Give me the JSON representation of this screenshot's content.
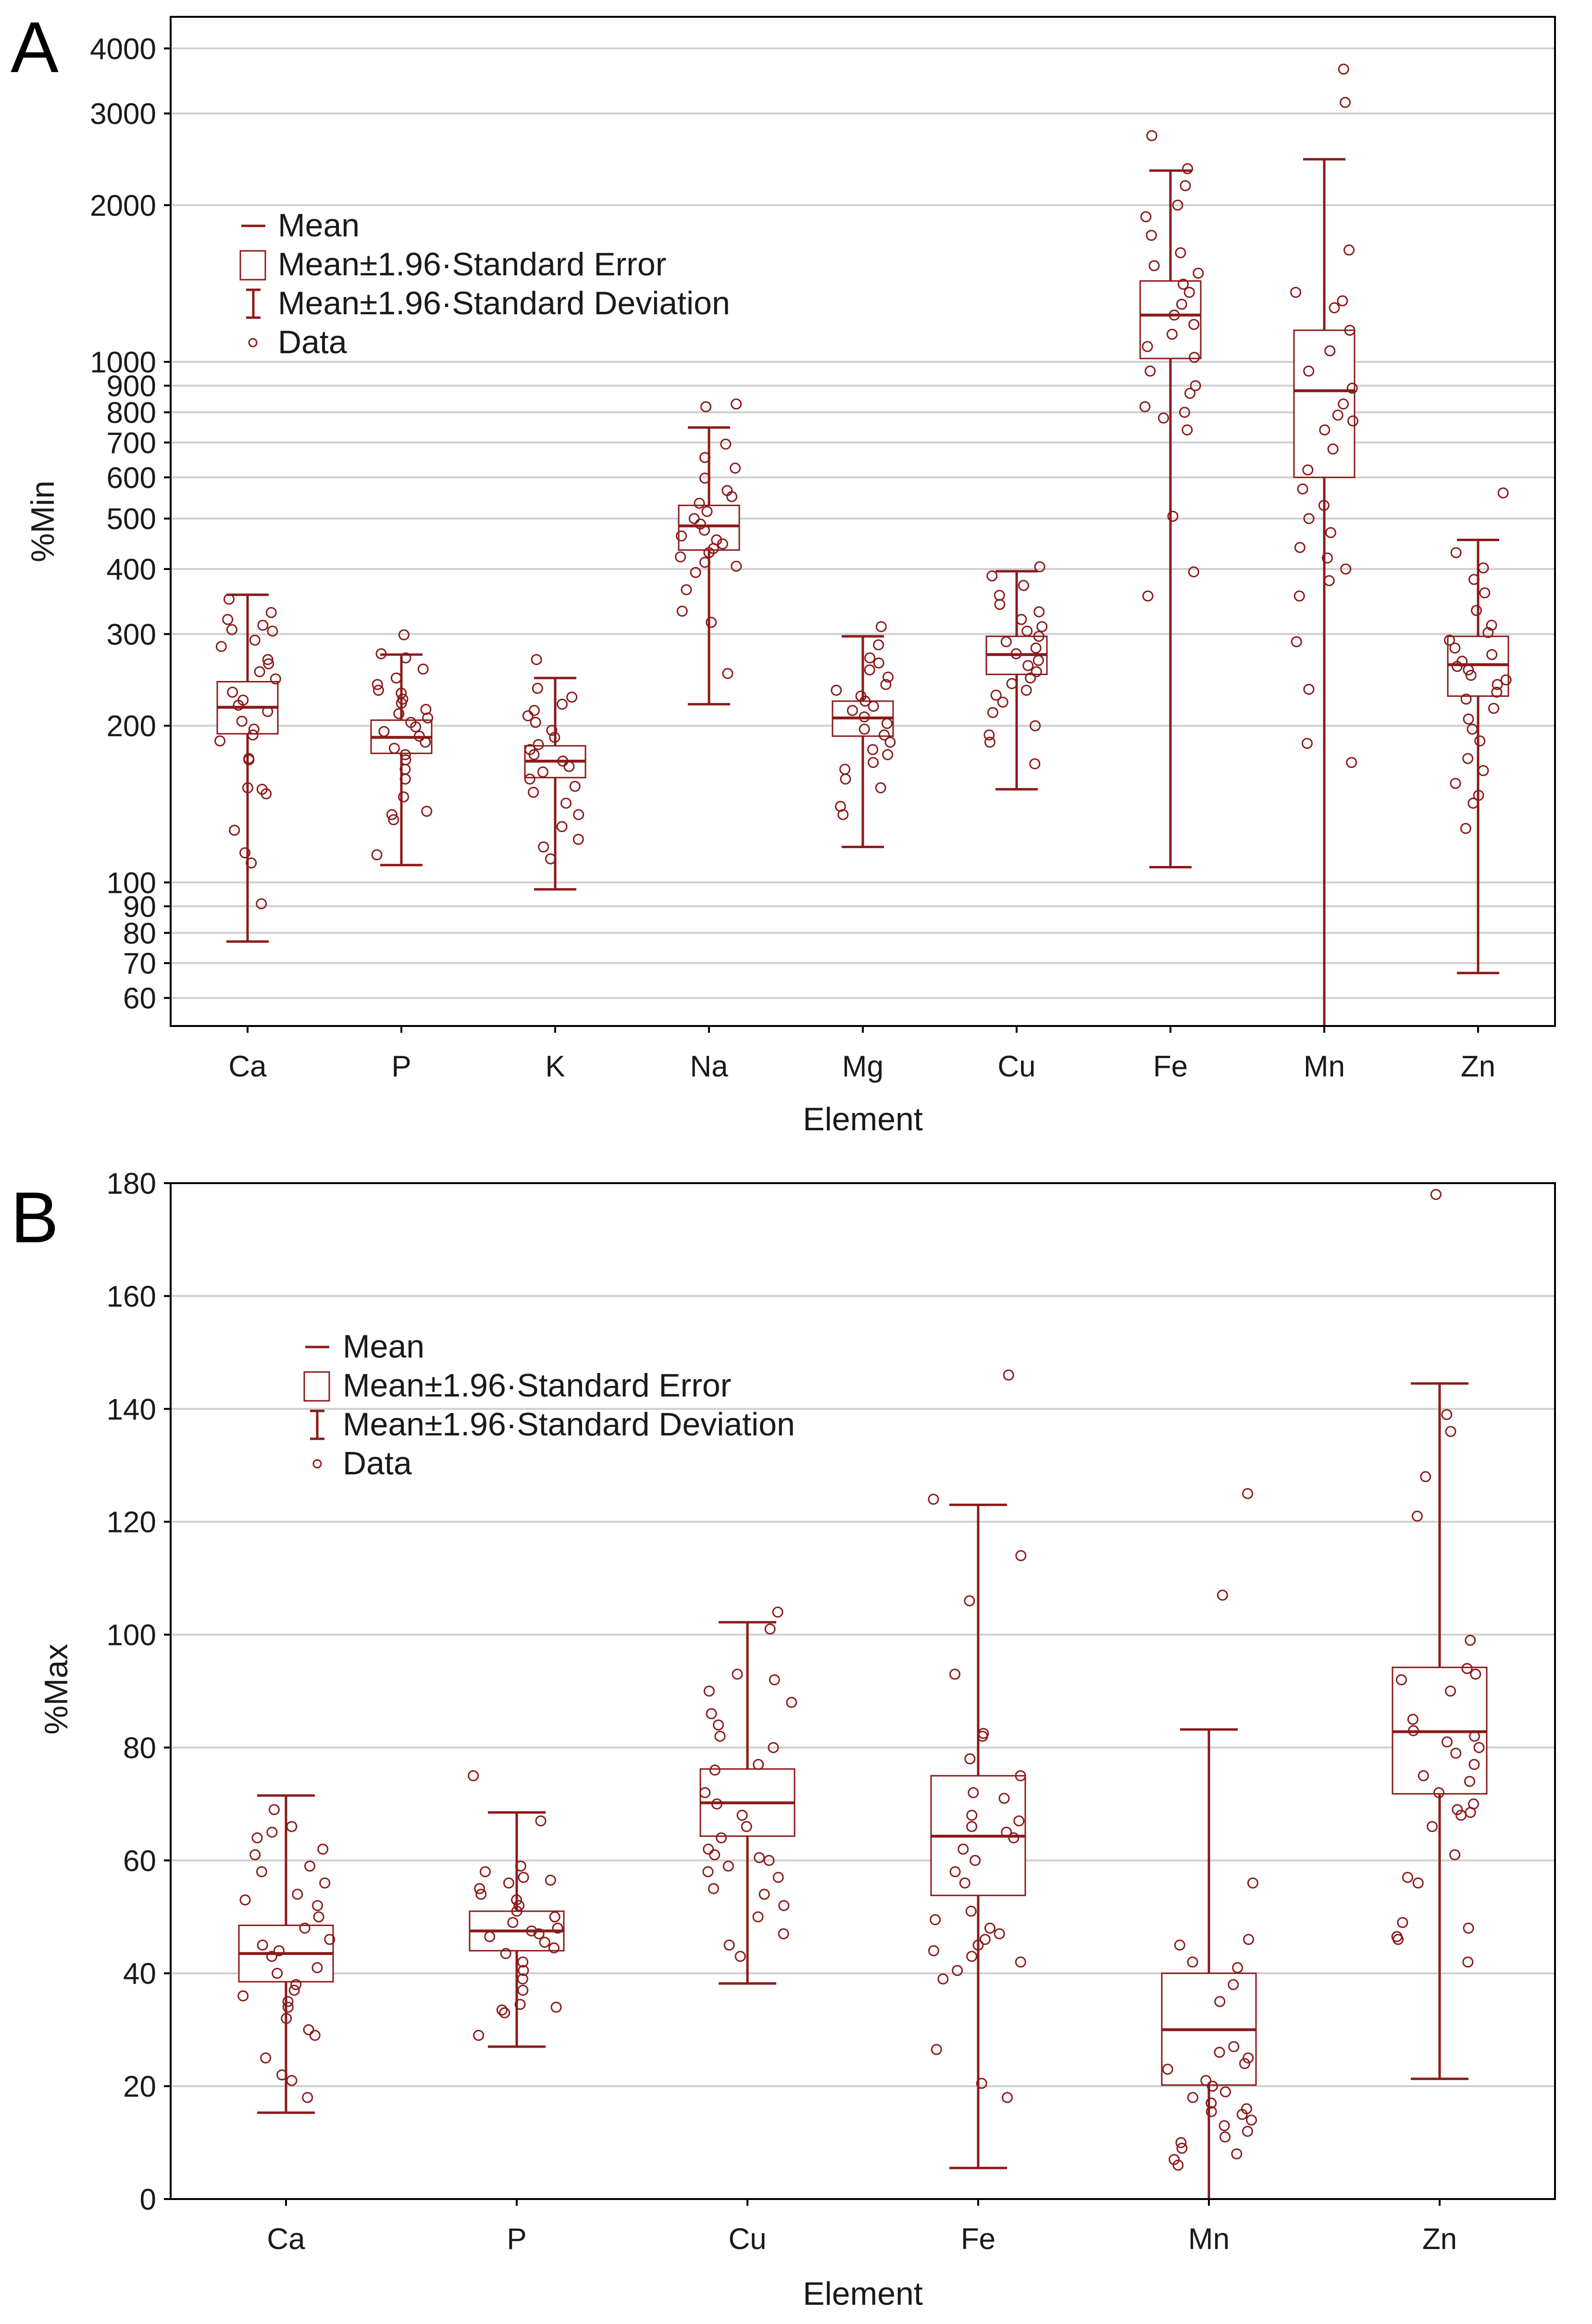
{
  "colors": {
    "series": "#8b1a1a",
    "grid": "#cfcfcf",
    "axis": "#000000"
  },
  "legend": {
    "mean": "Mean",
    "se": "Mean±1.96·Standard Error",
    "sd": "Mean±1.96·Standard Deviation",
    "data": "Data"
  },
  "chart_data": [
    {
      "panel": "A",
      "type": "box",
      "scale": "log",
      "xlabel": "Element",
      "ylabel": "%Min",
      "ylim": [
        53,
        4600
      ],
      "yticks": [
        60,
        70,
        80,
        90,
        100,
        200,
        300,
        400,
        500,
        600,
        700,
        800,
        900,
        1000,
        2000,
        3000,
        4000
      ],
      "ytick_labels": [
        "60",
        "70",
        "80",
        "90",
        "100",
        "200",
        "300",
        "400",
        "500",
        "600",
        "700",
        "800",
        "900",
        "1000",
        "2000",
        "3000",
        "4000"
      ],
      "legend_position": "top-left",
      "categories": [
        "Ca",
        "P",
        "K",
        "Na",
        "Mg",
        "Cu",
        "Fe",
        "Mn",
        "Zn"
      ],
      "stats": [
        {
          "mean": 217,
          "se_low": 193,
          "se_high": 243,
          "sd_low": 77,
          "sd_high": 357
        },
        {
          "mean": 190,
          "se_low": 177,
          "se_high": 205,
          "sd_low": 108,
          "sd_high": 274
        },
        {
          "mean": 171,
          "se_low": 159,
          "se_high": 183,
          "sd_low": 97,
          "sd_high": 247
        },
        {
          "mean": 484,
          "se_low": 435,
          "se_high": 530,
          "sd_low": 220,
          "sd_high": 748
        },
        {
          "mean": 207,
          "se_low": 191,
          "se_high": 223,
          "sd_low": 117,
          "sd_high": 297
        },
        {
          "mean": 274,
          "se_low": 251,
          "se_high": 297,
          "sd_low": 151,
          "sd_high": 396
        },
        {
          "mean": 1230,
          "se_low": 1015,
          "se_high": 1430,
          "sd_low": 107,
          "sd_high": 2330
        },
        {
          "mean": 880,
          "se_low": 600,
          "se_high": 1150,
          "sd_low": 53,
          "sd_high": 2450
        },
        {
          "mean": 262,
          "se_low": 228,
          "se_high": 297,
          "sd_low": 67,
          "sd_high": 455
        }
      ],
      "points": [
        [
          91,
          109,
          114,
          126,
          148,
          151,
          152,
          172,
          173,
          187,
          192,
          197,
          204,
          213,
          219,
          224,
          232,
          246,
          254,
          263,
          268,
          284,
          292,
          304,
          306,
          312,
          320,
          330,
          350
        ],
        [
          113,
          132,
          135,
          137,
          146,
          158,
          165,
          172,
          176,
          181,
          186,
          191,
          195,
          199,
          203,
          207,
          211,
          215,
          221,
          225,
          231,
          234,
          240,
          247,
          257,
          270,
          275,
          299
        ],
        [
          111,
          117,
          121,
          128,
          135,
          142,
          149,
          153,
          158,
          163,
          167,
          171,
          176,
          180,
          184,
          190,
          196,
          203,
          209,
          214,
          220,
          227,
          236,
          268
        ],
        [
          252,
          316,
          332,
          365,
          394,
          405,
          412,
          422,
          430,
          438,
          447,
          455,
          463,
          475,
          488,
          500,
          516,
          535,
          551,
          566,
          598,
          625,
          655,
          695,
          820,
          830
        ],
        [
          135,
          140,
          152,
          158,
          165,
          170,
          176,
          180,
          186,
          192,
          197,
          202,
          208,
          214,
          218,
          223,
          228,
          234,
          240,
          248,
          256,
          264,
          270,
          286,
          310
        ],
        [
          169,
          186,
          192,
          200,
          212,
          222,
          229,
          234,
          241,
          247,
          254,
          261,
          267,
          275,
          282,
          290,
          297,
          304,
          310,
          320,
          331,
          342,
          356,
          372,
          388,
          404
        ],
        [
          355,
          395,
          505,
          740,
          780,
          800,
          820,
          870,
          900,
          960,
          1020,
          1070,
          1130,
          1180,
          1230,
          1290,
          1360,
          1410,
          1480,
          1530,
          1620,
          1750,
          1900,
          2000,
          2180,
          2350,
          2720
        ],
        [
          170,
          185,
          235,
          290,
          355,
          380,
          400,
          420,
          440,
          470,
          500,
          530,
          570,
          620,
          680,
          740,
          770,
          790,
          830,
          890,
          960,
          1050,
          1150,
          1270,
          1310,
          1360,
          1640,
          3150,
          3650
        ],
        [
          127,
          142,
          147,
          155,
          164,
          173,
          187,
          197,
          206,
          216,
          225,
          232,
          240,
          245,
          250,
          256,
          260,
          266,
          274,
          282,
          292,
          302,
          312,
          333,
          360,
          382,
          402,
          430,
          560
        ]
      ]
    },
    {
      "panel": "B",
      "type": "box",
      "scale": "linear",
      "xlabel": "Element",
      "ylabel": "%Max",
      "ylim": [
        0,
        180
      ],
      "yticks": [
        0,
        20,
        40,
        60,
        80,
        100,
        120,
        140,
        160,
        180
      ],
      "ytick_labels": [
        "0",
        "20",
        "40",
        "60",
        "80",
        "100",
        "120",
        "140",
        "160",
        "180"
      ],
      "legend_position": "top-left",
      "categories": [
        "Ca",
        "P",
        "Cu",
        "Fe",
        "Mn",
        "Zn"
      ],
      "stats": [
        {
          "mean": 43.5,
          "se_low": 38.5,
          "se_high": 48.5,
          "sd_low": 15.3,
          "sd_high": 71.5
        },
        {
          "mean": 47.5,
          "se_low": 44.0,
          "se_high": 51.0,
          "sd_low": 27.0,
          "sd_high": 68.5
        },
        {
          "mean": 70.2,
          "se_low": 64.3,
          "se_high": 76.2,
          "sd_low": 38.2,
          "sd_high": 102.2
        },
        {
          "mean": 64.3,
          "se_low": 53.8,
          "se_high": 75.0,
          "sd_low": 5.5,
          "sd_high": 123.0
        },
        {
          "mean": 30.0,
          "se_low": 20.2,
          "se_high": 40.0,
          "sd_low": 0,
          "sd_high": 83.2
        },
        {
          "mean": 82.8,
          "se_low": 71.8,
          "se_high": 94.2,
          "sd_low": 21.3,
          "sd_high": 144.5
        }
      ],
      "points": [
        [
          18,
          21,
          22,
          25,
          29,
          30,
          32,
          34,
          35,
          36,
          37,
          38,
          40,
          41,
          43,
          44,
          45,
          46,
          48,
          50,
          52,
          53,
          54,
          56,
          58,
          59,
          61,
          62,
          64,
          65,
          66,
          69
        ],
        [
          29,
          33,
          33.5,
          34,
          34.5,
          37,
          39,
          40.5,
          42,
          43.5,
          44.5,
          45.5,
          46.5,
          47,
          47.5,
          48,
          49,
          50,
          51,
          52,
          53,
          54,
          55,
          56,
          56.5,
          57,
          58,
          59,
          67,
          75
        ],
        [
          43,
          45,
          47,
          50,
          52,
          54,
          55,
          57,
          58,
          59,
          60,
          60.5,
          61,
          62,
          64,
          66,
          68,
          70,
          72,
          76,
          77,
          80,
          82,
          84,
          86,
          88,
          90,
          92,
          93,
          101,
          104
        ],
        [
          18,
          20.5,
          26.5,
          39,
          40.5,
          42,
          43,
          44,
          45,
          46,
          47,
          48,
          49.5,
          51,
          56,
          58,
          60,
          62,
          64,
          65,
          66,
          67,
          68,
          71,
          72,
          75,
          78,
          82,
          82.5,
          93,
          106,
          114,
          124,
          146
        ],
        [
          6,
          7,
          8,
          9,
          10,
          11,
          12,
          13,
          14,
          15,
          15.5,
          16,
          17,
          18,
          19,
          20,
          21,
          23,
          24,
          25,
          26,
          27,
          35,
          38,
          41,
          42,
          45,
          46,
          56,
          107,
          125
        ],
        [
          42,
          46,
          46.5,
          48,
          49,
          56,
          57,
          61,
          66,
          68,
          68.5,
          69,
          70,
          72,
          74,
          75,
          77,
          79,
          80,
          81,
          82,
          83,
          85,
          90,
          92,
          93,
          94,
          99,
          121,
          128,
          136,
          139,
          178
        ]
      ]
    }
  ]
}
